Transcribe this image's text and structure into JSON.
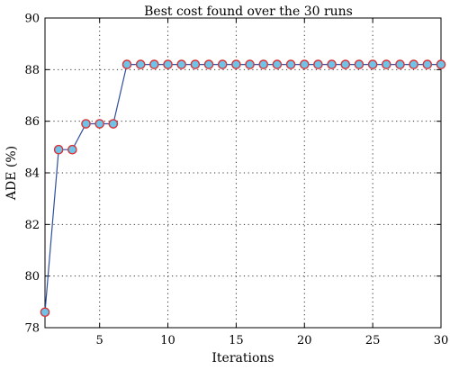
{
  "chart_data": {
    "type": "line",
    "title": "Best cost found over the 30 runs",
    "xlabel": "Iterations",
    "ylabel": "ADE (%)",
    "xlim": [
      1,
      30
    ],
    "ylim": [
      78,
      90
    ],
    "xticks": [
      5,
      10,
      15,
      20,
      25,
      30
    ],
    "yticks": [
      78,
      80,
      82,
      84,
      86,
      88,
      90
    ],
    "grid": true,
    "series": [
      {
        "x": [
          1,
          2,
          3,
          4,
          5,
          6,
          7,
          8,
          9,
          10,
          11,
          12,
          13,
          14,
          15,
          16,
          17,
          18,
          19,
          20,
          21,
          22,
          23,
          24,
          25,
          26,
          27,
          28,
          29,
          30
        ],
        "values": [
          78.6,
          84.9,
          84.9,
          85.9,
          85.9,
          85.9,
          88.2,
          88.2,
          88.2,
          88.2,
          88.2,
          88.2,
          88.2,
          88.2,
          88.2,
          88.2,
          88.2,
          88.2,
          88.2,
          88.2,
          88.2,
          88.2,
          88.2,
          88.2,
          88.2,
          88.2,
          88.2,
          88.2,
          88.2,
          88.2
        ],
        "line_color": "#2f4f9e",
        "marker_fill": "#6fc3e6",
        "marker_edge": "#d9343a"
      }
    ]
  }
}
